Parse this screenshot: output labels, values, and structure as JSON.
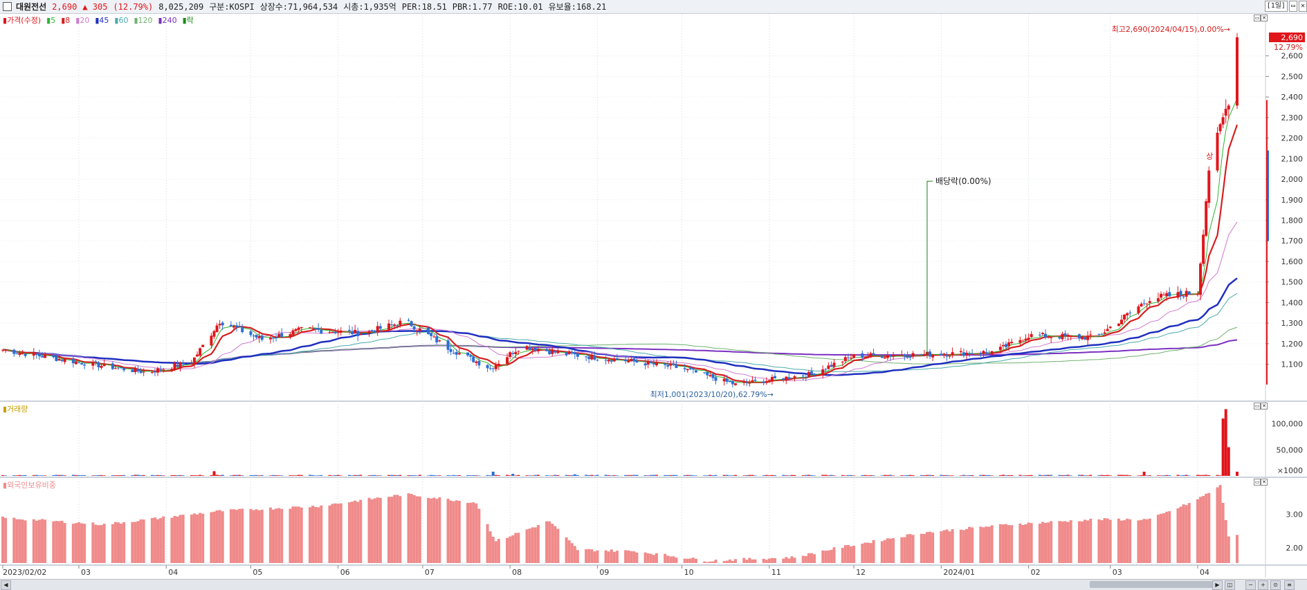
{
  "header": {
    "stock_name": "대원전선",
    "price": "2,690",
    "change": "▲ 305",
    "change_pct": "(12.79%)",
    "volume": "8,025,209",
    "market": "구분:KOSPI",
    "shares": "상장수:71,964,534",
    "market_cap": "시총:1,935억",
    "per": "PER:18.51",
    "pbr": "PBR:1.77",
    "roe": "ROE:10.01",
    "float_rate": "유보율:168.21",
    "period": "[1일]"
  },
  "price_panel": {
    "legend": {
      "price": "가격(수정)",
      "ma5": "5",
      "ma8": "8",
      "ma20": "20",
      "ma45": "45",
      "ma60": "60",
      "ma120": "120",
      "ma240": "240",
      "ex": "락"
    },
    "high_annotation": "최고2,690(2024/04/15),0.00%→",
    "low_annotation": "최저1,001(2023/10/20),62.79%→",
    "dividend_annotation": "배당락(0.00%)",
    "surge_annotation": "상",
    "current_price_tag": "2,690",
    "current_pct_tag": "12.79%",
    "y_ticks": [
      "2,600",
      "2,500",
      "2,400",
      "2,300",
      "2,200",
      "2,100",
      "2,000",
      "1,900",
      "1,800",
      "1,700",
      "1,600",
      "1,500",
      "1,400",
      "1,300",
      "1,200",
      "1,100"
    ]
  },
  "volume_panel": {
    "legend": "거래량",
    "y_ticks": [
      "100,000",
      "50,000"
    ],
    "unit": "×1000"
  },
  "foreign_panel": {
    "legend": "외국인보유비중",
    "y_ticks": [
      "3.00",
      "2.00"
    ]
  },
  "x_labels": [
    "2023/02/02",
    "03",
    "04",
    "05",
    "06",
    "07",
    "08",
    "09",
    "10",
    "11",
    "12",
    "2024/01",
    "02",
    "03",
    "04"
  ],
  "colors": {
    "up": "#e0161b",
    "down": "#2a6fd6",
    "ma5": "#2db52d",
    "ma8": "#d61f1f",
    "ma20": "#d07ad0",
    "ma45": "#1f2fbf",
    "ma60": "#4aa9a9",
    "ma120": "#6fb06f",
    "ma240": "#7a2fc0",
    "foreign": "#f08a8a"
  },
  "chart_data": {
    "type": "candlestick",
    "title": "대원전선",
    "x_range": [
      "2023/02/02",
      "2024/04/15"
    ],
    "ylim": [
      1001,
      2690
    ],
    "price_anchors": [
      {
        "date": "2023/02/02",
        "close": 1170
      },
      {
        "date": "2023/03/01",
        "close": 1110
      },
      {
        "date": "2023/03/25",
        "close": 1060
      },
      {
        "date": "2023/04/10",
        "close": 1110
      },
      {
        "date": "2023/04/20",
        "close": 1310
      },
      {
        "date": "2023/05/05",
        "close": 1220
      },
      {
        "date": "2023/05/20",
        "close": 1270
      },
      {
        "date": "2023/06/10",
        "close": 1250
      },
      {
        "date": "2023/06/25",
        "close": 1310
      },
      {
        "date": "2023/07/10",
        "close": 1180
      },
      {
        "date": "2023/07/25",
        "close": 1080
      },
      {
        "date": "2023/08/05",
        "close": 1190
      },
      {
        "date": "2023/08/20",
        "close": 1150
      },
      {
        "date": "2023/09/10",
        "close": 1120
      },
      {
        "date": "2023/10/01",
        "close": 1080
      },
      {
        "date": "2023/10/20",
        "close": 1001
      },
      {
        "date": "2023/11/15",
        "close": 1050
      },
      {
        "date": "2023/12/01",
        "close": 1140
      },
      {
        "date": "2024/01/01",
        "close": 1150
      },
      {
        "date": "2024/01/20",
        "close": 1160
      },
      {
        "date": "2024/02/01",
        "close": 1240
      },
      {
        "date": "2024/02/25",
        "close": 1230
      },
      {
        "date": "2024/03/15",
        "close": 1420
      },
      {
        "date": "2024/04/01",
        "close": 1450
      },
      {
        "date": "2024/04/05",
        "close": 2050
      },
      {
        "date": "2024/04/09",
        "close": 2250
      },
      {
        "date": "2024/04/12",
        "close": 2385
      },
      {
        "date": "2024/04/15",
        "close": 2690
      }
    ],
    "high": {
      "date": "2024/04/15",
      "value": 2690
    },
    "low": {
      "date": "2023/10/20",
      "value": 1001
    },
    "volume_ylim": [
      0,
      130000
    ],
    "volume_spikes": [
      {
        "date": "2023/04/18",
        "value": 9000
      },
      {
        "date": "2023/07/26",
        "value": 8000
      },
      {
        "date": "2023/08/02",
        "value": 4000
      },
      {
        "date": "2023/08/24",
        "value": 3000
      },
      {
        "date": "2024/03/13",
        "value": 8000
      },
      {
        "date": "2024/04/10",
        "value": 110000
      },
      {
        "date": "2024/04/11",
        "value": 128000
      },
      {
        "date": "2024/04/12",
        "value": 55000
      },
      {
        "date": "2024/04/15",
        "value": 8000
      }
    ],
    "foreign_ylim": [
      1.55,
      3.9
    ],
    "foreign_anchors": [
      {
        "date": "2023/02/02",
        "value": 2.9
      },
      {
        "date": "2023/03/10",
        "value": 2.7
      },
      {
        "date": "2023/04/20",
        "value": 3.1
      },
      {
        "date": "2023/05/25",
        "value": 3.25
      },
      {
        "date": "2023/06/25",
        "value": 3.6
      },
      {
        "date": "2023/07/20",
        "value": 3.35
      },
      {
        "date": "2023/07/27",
        "value": 2.2
      },
      {
        "date": "2023/08/15",
        "value": 2.8
      },
      {
        "date": "2023/08/25",
        "value": 1.95
      },
      {
        "date": "2023/09/15",
        "value": 1.9
      },
      {
        "date": "2023/10/10",
        "value": 1.62
      },
      {
        "date": "2023/11/10",
        "value": 1.72
      },
      {
        "date": "2023/11/25",
        "value": 2.0
      },
      {
        "date": "2023/12/25",
        "value": 2.45
      },
      {
        "date": "2024/01/25",
        "value": 2.7
      },
      {
        "date": "2024/02/25",
        "value": 2.85
      },
      {
        "date": "2024/03/15",
        "value": 2.85
      },
      {
        "date": "2024/03/31",
        "value": 3.4
      },
      {
        "date": "2024/04/09",
        "value": 3.85
      },
      {
        "date": "2024/04/12",
        "value": 2.35
      },
      {
        "date": "2024/04/15",
        "value": 2.4
      }
    ]
  }
}
